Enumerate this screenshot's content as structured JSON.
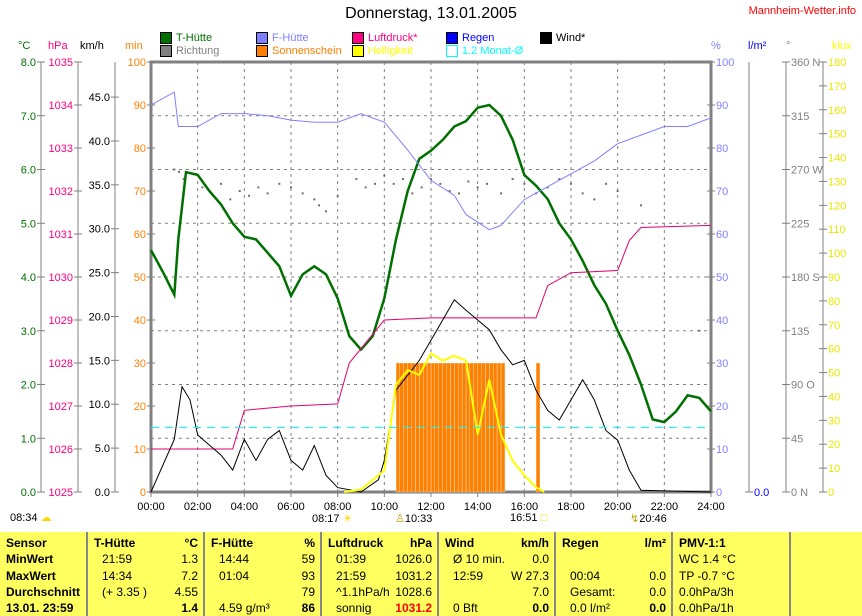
{
  "header": {
    "title": "Donnerstag, 13.01.2005",
    "site": "Mannheim-Wetter.info"
  },
  "legend": [
    {
      "label": "T-Hütte",
      "color": "#007000"
    },
    {
      "label": "F-Hütte",
      "color": "#8080ff"
    },
    {
      "label": "Luftdruck*",
      "color": "#ff0080"
    },
    {
      "label": "Regen",
      "color": "#0000ff"
    },
    {
      "label": "Wind*",
      "color": "#000000"
    },
    {
      "label": "Richtung",
      "color": "#808080"
    },
    {
      "label": "Sonnenschein",
      "color": "#ff8000"
    },
    {
      "label": "Helligkeit",
      "color": "#ffff00"
    },
    {
      "label": "1.2 Monat-Ø",
      "color": "#00ffff"
    }
  ],
  "units": {
    "temp": "°C",
    "press": "hPa",
    "wind": "km/h",
    "sun": "min",
    "hum": "%",
    "rain": "l/m²",
    "dir": "°",
    "lux": "klux"
  },
  "sun_events": {
    "sunrise_label": "08:34",
    "sun_start": "08:17",
    "sun_high": "10:33",
    "sun_end": "16:51",
    "moon": "20:46"
  },
  "chart_data": {
    "type": "line",
    "title": "Donnerstag, 13.01.2005",
    "xlabel": "",
    "x_range": [
      0,
      24
    ],
    "x_ticks": [
      "00:00",
      "02:00",
      "04:00",
      "06:00",
      "08:00",
      "10:00",
      "12:00",
      "14:00",
      "16:00",
      "18:00",
      "20:00",
      "22:00",
      "24:00"
    ],
    "axes": {
      "temp": {
        "range": [
          0,
          8
        ],
        "ticks": [
          "0.0",
          "1.0",
          "2.0",
          "3.0",
          "4.0",
          "5.0",
          "6.0",
          "7.0",
          "8.0"
        ]
      },
      "press": {
        "range": [
          1025,
          1035
        ],
        "ticks": [
          "1025",
          "1026",
          "1027",
          "1028",
          "1029",
          "1030",
          "1031",
          "1032",
          "1033",
          "1034",
          "1035"
        ]
      },
      "wind": {
        "range": [
          0,
          49
        ],
        "ticks": [
          "0.0",
          "5.0",
          "10.0",
          "15.0",
          "20.0",
          "25.0",
          "30.0",
          "35.0",
          "40.0",
          "45.0"
        ]
      },
      "sun": {
        "range": [
          0,
          100
        ],
        "ticks": [
          "0",
          "10",
          "20",
          "30",
          "40",
          "50",
          "60",
          "70",
          "80",
          "90",
          "100"
        ]
      },
      "hum": {
        "range": [
          0,
          100
        ],
        "ticks": [
          "0",
          "10",
          "20",
          "30",
          "40",
          "50",
          "60",
          "70",
          "80",
          "90",
          "100"
        ]
      },
      "rain": {
        "range": [
          0,
          1
        ],
        "ticks": [
          "0.0"
        ]
      },
      "dir": {
        "range": [
          0,
          360
        ],
        "ticks": [
          "0   N",
          "45",
          "90  O",
          "135",
          "180 S",
          "225",
          "270 W",
          "315",
          "360 N"
        ]
      },
      "lux": {
        "range": [
          0,
          180
        ],
        "ticks": [
          "0",
          "10",
          "20",
          "30",
          "40",
          "50",
          "60",
          "70",
          "80",
          "90",
          "100",
          "110",
          "120",
          "130",
          "140",
          "150",
          "160",
          "170",
          "180"
        ]
      }
    },
    "series": [
      {
        "name": "T-Hütte",
        "axis": "temp",
        "points": [
          [
            0,
            4.5
          ],
          [
            0.5,
            4.1
          ],
          [
            1,
            3.67
          ],
          [
            1.17,
            4.7
          ],
          [
            1.5,
            5.95
          ],
          [
            2,
            5.9
          ],
          [
            2.5,
            5.6
          ],
          [
            3,
            5.35
          ],
          [
            3.5,
            5.0
          ],
          [
            4,
            4.75
          ],
          [
            4.5,
            4.7
          ],
          [
            5,
            4.45
          ],
          [
            5.5,
            4.2
          ],
          [
            6,
            3.65
          ],
          [
            6.5,
            4.05
          ],
          [
            7,
            4.2
          ],
          [
            7.5,
            4.05
          ],
          [
            8,
            3.6
          ],
          [
            8.5,
            2.9
          ],
          [
            9,
            2.65
          ],
          [
            9.5,
            2.9
          ],
          [
            10,
            3.6
          ],
          [
            10.5,
            4.7
          ],
          [
            11,
            5.6
          ],
          [
            11.5,
            6.2
          ],
          [
            12,
            6.35
          ],
          [
            12.5,
            6.55
          ],
          [
            13,
            6.8
          ],
          [
            13.5,
            6.9
          ],
          [
            14,
            7.15
          ],
          [
            14.5,
            7.2
          ],
          [
            15,
            7.0
          ],
          [
            15.5,
            6.55
          ],
          [
            16,
            5.9
          ],
          [
            16.5,
            5.7
          ],
          [
            17,
            5.45
          ],
          [
            17.5,
            5.0
          ],
          [
            18,
            4.7
          ],
          [
            18.5,
            4.3
          ],
          [
            19,
            3.85
          ],
          [
            19.5,
            3.5
          ],
          [
            20,
            3.0
          ],
          [
            20.5,
            2.55
          ],
          [
            21,
            2.0
          ],
          [
            21.5,
            1.35
          ],
          [
            22,
            1.3
          ],
          [
            22.5,
            1.5
          ],
          [
            23,
            1.8
          ],
          [
            23.5,
            1.75
          ],
          [
            24,
            1.5
          ]
        ]
      },
      {
        "name": "F-Hütte",
        "axis": "hum",
        "points": [
          [
            0,
            90
          ],
          [
            1,
            93
          ],
          [
            1.17,
            85
          ],
          [
            2,
            85
          ],
          [
            3,
            88
          ],
          [
            4,
            88
          ],
          [
            5,
            87.5
          ],
          [
            6,
            86.5
          ],
          [
            7,
            86
          ],
          [
            8,
            86
          ],
          [
            9,
            88
          ],
          [
            10,
            86
          ],
          [
            11,
            79.5
          ],
          [
            12,
            72.5
          ],
          [
            13,
            69
          ],
          [
            13.5,
            64.5
          ],
          [
            14.5,
            61
          ],
          [
            15,
            62
          ],
          [
            16,
            68
          ],
          [
            17,
            71
          ],
          [
            18,
            74
          ],
          [
            19,
            77
          ],
          [
            20,
            81
          ],
          [
            21,
            83
          ],
          [
            22,
            85
          ],
          [
            23,
            85
          ],
          [
            24,
            87
          ]
        ]
      },
      {
        "name": "Luftdruck*",
        "axis": "press",
        "points": [
          [
            0,
            1026.0
          ],
          [
            3.5,
            1026.0
          ],
          [
            4,
            1026.9
          ],
          [
            6,
            1027.0
          ],
          [
            8,
            1027.05
          ],
          [
            8.5,
            1028.0
          ],
          [
            10,
            1029.0
          ],
          [
            12,
            1029.05
          ],
          [
            16.5,
            1029.05
          ],
          [
            17,
            1029.8
          ],
          [
            18,
            1030.1
          ],
          [
            20,
            1030.15
          ],
          [
            20.5,
            1030.85
          ],
          [
            21,
            1031.15
          ],
          [
            24,
            1031.2
          ]
        ]
      },
      {
        "name": "Wind*",
        "axis": "wind",
        "points": [
          [
            0,
            0
          ],
          [
            1,
            6
          ],
          [
            1.33,
            12
          ],
          [
            1.67,
            10.5
          ],
          [
            2,
            6.5
          ],
          [
            3,
            4.2
          ],
          [
            3.5,
            2.5
          ],
          [
            4,
            6
          ],
          [
            4.5,
            3.6
          ],
          [
            5,
            6
          ],
          [
            5.5,
            7
          ],
          [
            6,
            3.6
          ],
          [
            6.5,
            2.5
          ],
          [
            7,
            5.3
          ],
          [
            7.5,
            1.9
          ],
          [
            8,
            0.5
          ],
          [
            9,
            0
          ],
          [
            9.75,
            1.4
          ],
          [
            10,
            3.6
          ],
          [
            10.5,
            11.6
          ],
          [
            11,
            13.3
          ],
          [
            11.5,
            15
          ],
          [
            12,
            17.3
          ],
          [
            12.5,
            19.6
          ],
          [
            13,
            21.9
          ],
          [
            13.5,
            20.7
          ],
          [
            14,
            19.6
          ],
          [
            14.5,
            18.5
          ],
          [
            15,
            16.2
          ],
          [
            15.5,
            14.5
          ],
          [
            16,
            15
          ],
          [
            16.5,
            11.6
          ],
          [
            17,
            9.3
          ],
          [
            17.5,
            8.2
          ],
          [
            18,
            10.5
          ],
          [
            18.5,
            12.8
          ],
          [
            19,
            10.5
          ],
          [
            19.5,
            7
          ],
          [
            20,
            5.9
          ],
          [
            20.5,
            2.5
          ],
          [
            21,
            0.2
          ],
          [
            24,
            0
          ]
        ]
      },
      {
        "name": "Helligkeit",
        "axis": "lux",
        "points": [
          [
            8.28,
            0
          ],
          [
            9,
            1
          ],
          [
            10,
            9
          ],
          [
            10.5,
            45
          ],
          [
            11,
            51
          ],
          [
            11.5,
            49
          ],
          [
            12,
            58
          ],
          [
            12.5,
            55
          ],
          [
            13,
            57
          ],
          [
            13.5,
            55
          ],
          [
            14,
            24
          ],
          [
            14.5,
            47
          ],
          [
            15,
            24
          ],
          [
            15.5,
            13
          ],
          [
            16,
            7
          ],
          [
            16.5,
            2
          ],
          [
            16.85,
            0
          ]
        ]
      },
      {
        "name": "1.2 Monat-Ø",
        "axis": "temp",
        "points": [
          [
            0,
            1.2
          ],
          [
            24,
            1.2
          ]
        ]
      }
    ],
    "sunshine_bars": {
      "name": "Sonnenschein",
      "axis": "sun",
      "interval_h": 0.1667,
      "bars": [
        [
          10.67,
          6
        ],
        [
          10.83,
          6
        ],
        [
          11,
          6
        ],
        [
          11.17,
          6
        ],
        [
          11.33,
          6
        ],
        [
          11.5,
          6
        ],
        [
          11.67,
          6
        ],
        [
          11.83,
          6
        ],
        [
          12,
          6
        ],
        [
          12.17,
          6
        ],
        [
          12.33,
          6
        ],
        [
          12.5,
          6
        ],
        [
          12.67,
          6
        ],
        [
          12.83,
          6
        ],
        [
          13,
          6
        ],
        [
          13.17,
          6
        ],
        [
          13.33,
          6
        ],
        [
          13.5,
          6
        ],
        [
          13.67,
          6
        ],
        [
          13.83,
          6
        ],
        [
          14,
          6
        ],
        [
          14.17,
          6
        ],
        [
          14.33,
          6
        ],
        [
          14.5,
          6
        ],
        [
          14.67,
          6
        ],
        [
          14.83,
          6
        ],
        [
          15,
          6
        ],
        [
          15.17,
          6
        ],
        [
          16.67,
          6
        ]
      ]
    },
    "direction": {
      "name": "Richtung",
      "axis": "dir",
      "points": [
        [
          1,
          270
        ],
        [
          1.2,
          268
        ],
        [
          1.4,
          262
        ],
        [
          2.2,
          255
        ],
        [
          2.6,
          250
        ],
        [
          3,
          258
        ],
        [
          3.4,
          245
        ],
        [
          3.8,
          252
        ],
        [
          4.2,
          248
        ],
        [
          4.6,
          255
        ],
        [
          5,
          250
        ],
        [
          5.5,
          258
        ],
        [
          6,
          255
        ],
        [
          6.5,
          250
        ],
        [
          7,
          245
        ],
        [
          7.2,
          240
        ],
        [
          7.5,
          235
        ],
        [
          8,
          248
        ],
        [
          8.8,
          262
        ],
        [
          9.2,
          255
        ],
        [
          9.6,
          258
        ],
        [
          10,
          265
        ],
        [
          10.4,
          258
        ],
        [
          10.8,
          262
        ],
        [
          11.2,
          250
        ],
        [
          11.6,
          255
        ],
        [
          12,
          262
        ],
        [
          12.4,
          258
        ],
        [
          12.8,
          252
        ],
        [
          13.2,
          250
        ],
        [
          13.6,
          260
        ],
        [
          14,
          255
        ],
        [
          14.4,
          258
        ],
        [
          15,
          250
        ],
        [
          15.5,
          262
        ],
        [
          16,
          258
        ],
        [
          16.5,
          250
        ],
        [
          17,
          255
        ],
        [
          17.5,
          262
        ],
        [
          18,
          258
        ],
        [
          18.5,
          250
        ],
        [
          19,
          245
        ],
        [
          19.5,
          258
        ],
        [
          20,
          252
        ],
        [
          21,
          240
        ],
        [
          23.5,
          135
        ]
      ]
    },
    "data_labels": []
  },
  "table": {
    "rows_label": [
      "Sensor",
      "MinWert",
      "MaxWert",
      "Durchschnitt",
      "13.01. 23:59"
    ],
    "cols": [
      {
        "head": "T-Hütte",
        "unit": "°C",
        "cells": [
          [
            "21:59",
            "1.3"
          ],
          [
            "14:34",
            "7.2"
          ],
          [
            "(+ 3.35 )",
            "4.55"
          ],
          [
            "",
            "1.4"
          ]
        ]
      },
      {
        "head": "F-Hütte",
        "unit": "%",
        "cells": [
          [
            "14:44",
            "59"
          ],
          [
            "01:04",
            "93"
          ],
          [
            "",
            "79"
          ],
          [
            "4.59 g/m³",
            "86"
          ]
        ]
      },
      {
        "head": "Luftdruck",
        "unit": "hPa",
        "cells": [
          [
            "01:39",
            "1026.0"
          ],
          [
            "21:59",
            "1031.2"
          ],
          [
            "^1.1hPa/h",
            "1028.6"
          ],
          [
            "sonnig",
            "1031.2"
          ]
        ]
      },
      {
        "head": "Wind",
        "unit": "km/h",
        "cells": [
          [
            "Ø 10 min.",
            "0.0"
          ],
          [
            "12:59",
            "W 27.3"
          ],
          [
            "",
            "7.0"
          ],
          [
            "0 Bft",
            "0.0"
          ]
        ]
      },
      {
        "head": "Regen",
        "unit": "l/m²",
        "cells": [
          [
            "",
            ""
          ],
          [
            "00:04",
            "0.0"
          ],
          [
            "Gesamt:",
            "0.0"
          ],
          [
            "0.0 l/m²",
            "0.0"
          ]
        ]
      }
    ],
    "pmv": {
      "head": "PMV-1:1",
      "lines": [
        "WC 1.4 °C",
        "TP -0.7 °C",
        "0.0hPa/3h",
        "0.0hPa/1h"
      ]
    }
  }
}
